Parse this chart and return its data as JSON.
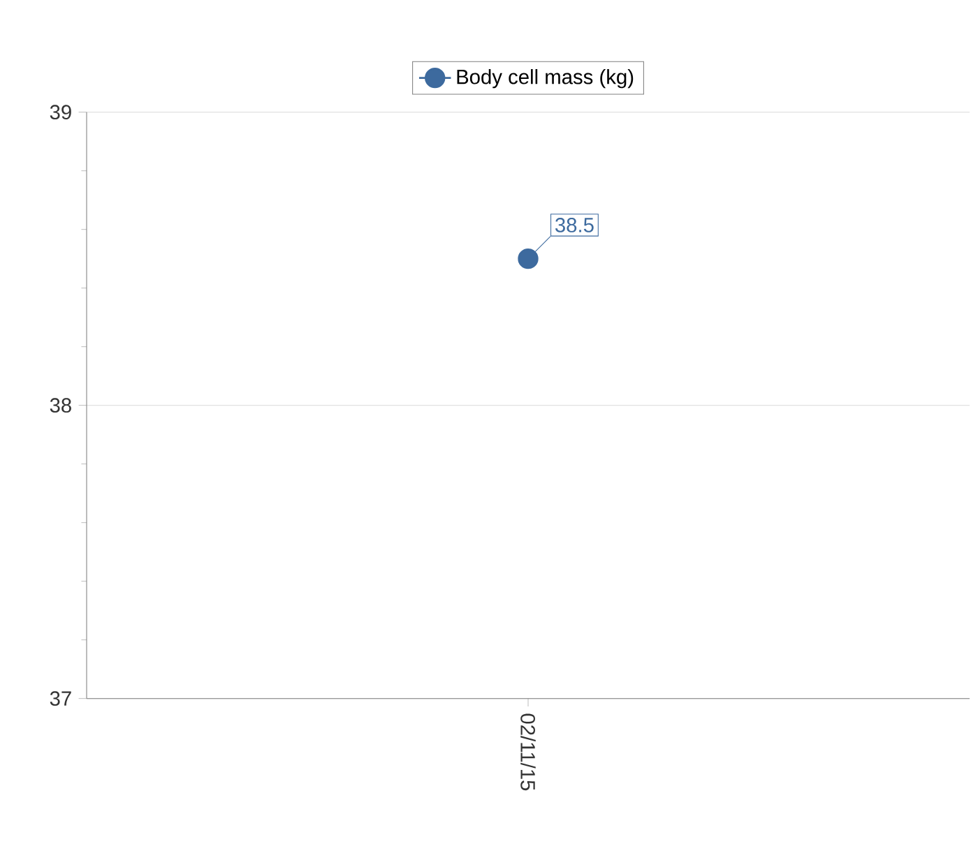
{
  "chart_data": {
    "type": "line",
    "categories": [
      "02/11/15"
    ],
    "series": [
      {
        "name": "Body cell mass (kg)",
        "color": "#3d6a9e",
        "values": [
          38.5
        ]
      }
    ],
    "ylim": [
      37,
      39
    ],
    "yticks": [
      37,
      38,
      39
    ],
    "grid": "y",
    "legend": "top",
    "marker": "circle",
    "data_labels": true
  }
}
